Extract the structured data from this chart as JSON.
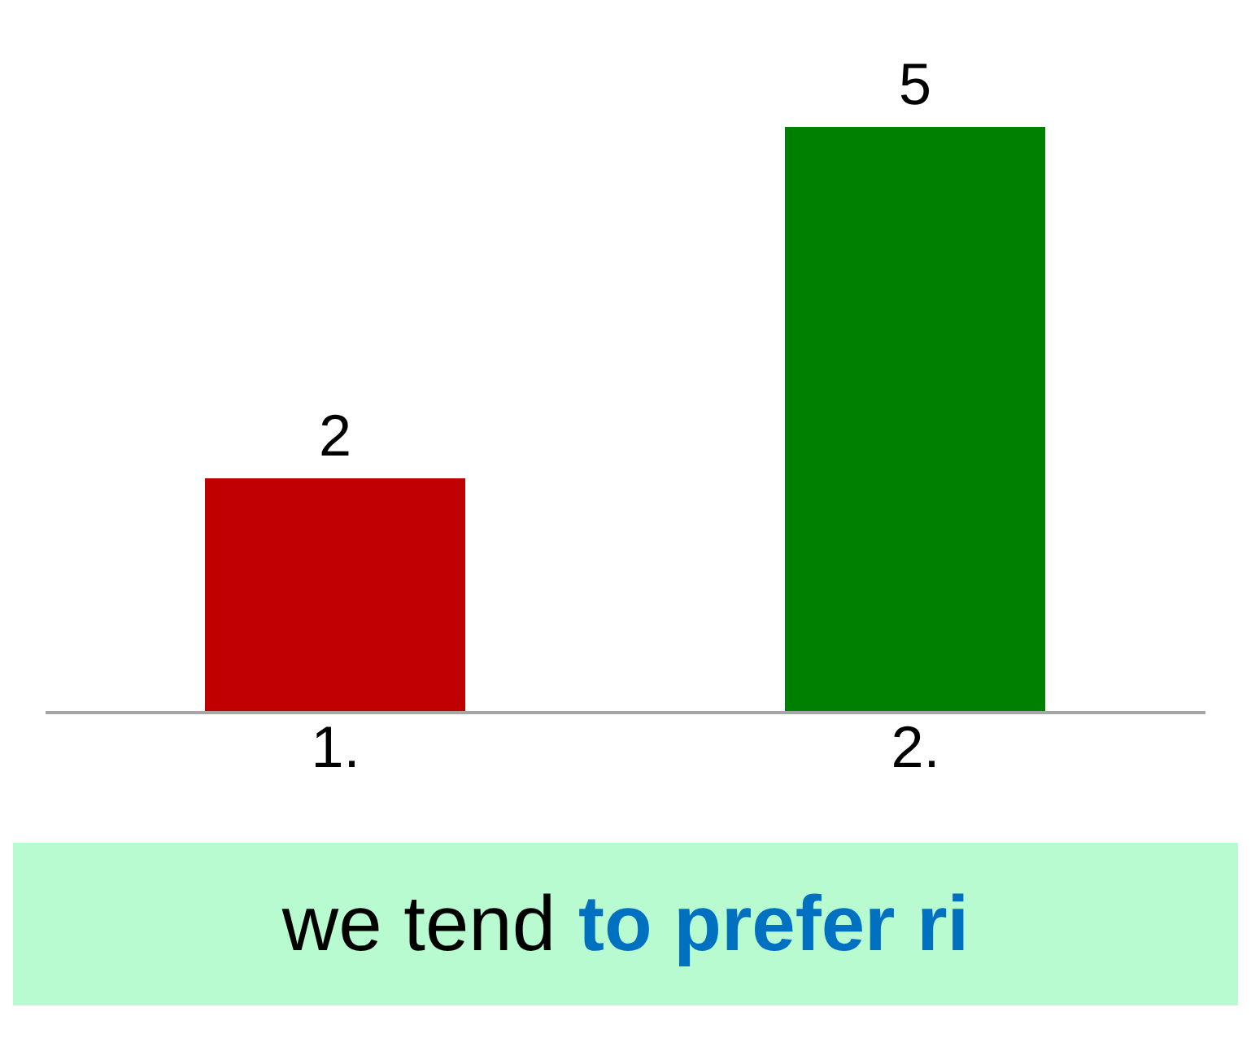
{
  "chart_data": {
    "type": "bar",
    "categories": [
      "1.",
      "2."
    ],
    "values": [
      2,
      5
    ],
    "colors": [
      "#c00000",
      "#008000"
    ],
    "data_labels": true,
    "annotations": [
      "we tend",
      "to prefer ri"
    ]
  }
}
